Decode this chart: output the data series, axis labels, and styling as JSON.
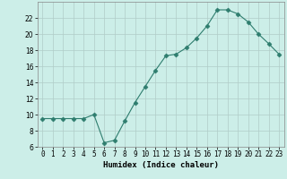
{
  "x": [
    0,
    1,
    2,
    3,
    4,
    5,
    6,
    7,
    8,
    9,
    10,
    11,
    12,
    13,
    14,
    15,
    16,
    17,
    18,
    19,
    20,
    21,
    22,
    23
  ],
  "y": [
    9.5,
    9.5,
    9.5,
    9.5,
    9.5,
    10.0,
    6.5,
    6.8,
    9.2,
    11.5,
    13.5,
    15.5,
    17.3,
    17.5,
    18.3,
    19.5,
    21.0,
    23.0,
    23.0,
    22.5,
    21.5,
    20.0,
    18.8,
    17.5
  ],
  "line_color": "#2e7d6e",
  "marker": "D",
  "markersize": 2.5,
  "linewidth": 0.8,
  "bg_color": "#cceee8",
  "grid_color": "#b0ccc8",
  "xlabel": "Humidex (Indice chaleur)",
  "xlim": [
    -0.5,
    23.5
  ],
  "ylim": [
    6,
    24
  ],
  "yticks": [
    6,
    8,
    10,
    12,
    14,
    16,
    18,
    20,
    22
  ],
  "xticks": [
    0,
    1,
    2,
    3,
    4,
    5,
    6,
    7,
    8,
    9,
    10,
    11,
    12,
    13,
    14,
    15,
    16,
    17,
    18,
    19,
    20,
    21,
    22,
    23
  ],
  "xlabel_fontsize": 6.5,
  "tick_fontsize": 5.5
}
